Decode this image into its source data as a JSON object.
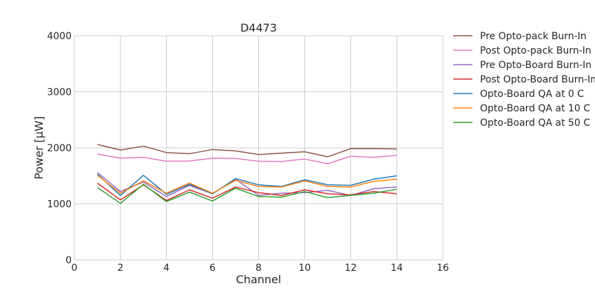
{
  "chart_data": {
    "type": "line",
    "title": "D4473",
    "xlabel": "Channel",
    "ylabel": "Power [μW]",
    "xlim": [
      0,
      16
    ],
    "ylim": [
      0,
      4000
    ],
    "xticks": [
      0,
      2,
      4,
      6,
      8,
      10,
      12,
      14,
      16
    ],
    "yticks": [
      0,
      1000,
      2000,
      3000,
      4000
    ],
    "grid": true,
    "legend_position": "outside-right-top",
    "x": [
      1,
      2,
      3,
      4,
      5,
      6,
      7,
      8,
      9,
      10,
      11,
      12,
      13,
      14
    ],
    "series": [
      {
        "name": "Pre Opto-pack Burn-In",
        "color": "#8c564b",
        "values": [
          2060,
          1960,
          2030,
          1915,
          1895,
          1970,
          1945,
          1880,
          1905,
          1930,
          1840,
          1985,
          1985,
          1980
        ]
      },
      {
        "name": "Post Opto-pack Burn-In",
        "color": "#e377c2",
        "values": [
          1890,
          1815,
          1830,
          1760,
          1765,
          1815,
          1810,
          1760,
          1755,
          1800,
          1715,
          1850,
          1830,
          1865
        ]
      },
      {
        "name": "Pre Opto-Board Burn-In",
        "color": "#9467bd",
        "values": [
          1560,
          1220,
          1390,
          1130,
          1330,
          1180,
          1440,
          1150,
          1190,
          1200,
          1240,
          1150,
          1270,
          1300
        ]
      },
      {
        "name": "Post Opto-Board Burn-In",
        "color": "#d62728",
        "values": [
          1370,
          1070,
          1340,
          1060,
          1250,
          1100,
          1300,
          1200,
          1150,
          1250,
          1180,
          1160,
          1220,
          1180
        ]
      },
      {
        "name": "Opto-Board QA at 0 C",
        "color": "#1f77b4",
        "values": [
          1530,
          1150,
          1510,
          1170,
          1350,
          1180,
          1450,
          1340,
          1310,
          1430,
          1340,
          1330,
          1440,
          1500
        ]
      },
      {
        "name": "Opto-Board QA at 10 C",
        "color": "#ff7f0e",
        "values": [
          1510,
          1190,
          1410,
          1190,
          1370,
          1190,
          1420,
          1310,
          1300,
          1410,
          1310,
          1300,
          1400,
          1440
        ]
      },
      {
        "name": "Opto-Board QA at 50 C",
        "color": "#2ca02c",
        "values": [
          1290,
          1010,
          1350,
          1040,
          1210,
          1050,
          1280,
          1130,
          1120,
          1220,
          1110,
          1150,
          1190,
          1260
        ]
      }
    ]
  }
}
